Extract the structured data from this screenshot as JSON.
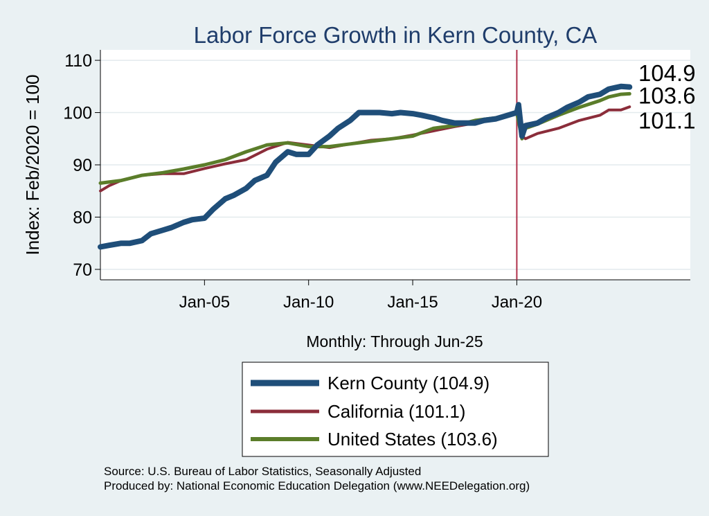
{
  "chart_data": {
    "type": "line",
    "title": "Labor Force Growth in Kern  County, CA",
    "ylabel": "Index: Feb/2020 = 100",
    "xlabel": "Monthly: Through Jun-25",
    "ylim": [
      68,
      112
    ],
    "yticks": [
      "70",
      "80",
      "90",
      "100",
      "110"
    ],
    "xtick_labels": [
      "Jan-05",
      "Jan-10",
      "Jan-15",
      "Jan-20"
    ],
    "x_range": [
      "2000-01",
      "2028-05"
    ],
    "vline": "2020-01",
    "grid": true,
    "legend_position": "bottom",
    "colors": {
      "kern": "#1f4e79",
      "ca": "#8b2d3a",
      "us": "#5b7d2a",
      "vline": "#b0304a",
      "background": "#eaf1f3",
      "plot_bg": "#ffffff"
    },
    "series": [
      {
        "key": "kern",
        "name": "Kern  County (104.9)",
        "end_label": "104.9",
        "points": [
          [
            "2000-01",
            74.3
          ],
          [
            "2000-06",
            74.6
          ],
          [
            "2001-01",
            75.0
          ],
          [
            "2001-06",
            75.0
          ],
          [
            "2002-01",
            75.5
          ],
          [
            "2002-06",
            76.8
          ],
          [
            "2003-01",
            77.5
          ],
          [
            "2003-06",
            78.0
          ],
          [
            "2004-01",
            79.0
          ],
          [
            "2004-06",
            79.5
          ],
          [
            "2005-01",
            79.8
          ],
          [
            "2005-06",
            81.5
          ],
          [
            "2006-01",
            83.5
          ],
          [
            "2006-06",
            84.2
          ],
          [
            "2007-01",
            85.5
          ],
          [
            "2007-06",
            87.0
          ],
          [
            "2008-01",
            88.0
          ],
          [
            "2008-06",
            90.5
          ],
          [
            "2009-01",
            92.5
          ],
          [
            "2009-06",
            92.0
          ],
          [
            "2010-01",
            92.0
          ],
          [
            "2010-06",
            93.8
          ],
          [
            "2011-01",
            95.5
          ],
          [
            "2011-06",
            97.0
          ],
          [
            "2012-01",
            98.5
          ],
          [
            "2012-06",
            100.0
          ],
          [
            "2013-01",
            100.0
          ],
          [
            "2013-06",
            100.0
          ],
          [
            "2014-01",
            99.8
          ],
          [
            "2014-06",
            100.0
          ],
          [
            "2015-01",
            99.8
          ],
          [
            "2015-06",
            99.5
          ],
          [
            "2016-01",
            99.0
          ],
          [
            "2016-06",
            98.5
          ],
          [
            "2017-01",
            98.0
          ],
          [
            "2017-06",
            98.0
          ],
          [
            "2018-01",
            98.0
          ],
          [
            "2018-06",
            98.5
          ],
          [
            "2019-01",
            98.8
          ],
          [
            "2019-06",
            99.3
          ],
          [
            "2020-01",
            100.0
          ],
          [
            "2020-02",
            101.5
          ],
          [
            "2020-04",
            95.5
          ],
          [
            "2020-06",
            97.5
          ],
          [
            "2021-01",
            98.0
          ],
          [
            "2021-06",
            99.0
          ],
          [
            "2022-01",
            100.0
          ],
          [
            "2022-06",
            101.0
          ],
          [
            "2023-01",
            102.0
          ],
          [
            "2023-06",
            103.0
          ],
          [
            "2024-01",
            103.5
          ],
          [
            "2024-06",
            104.5
          ],
          [
            "2025-01",
            105.0
          ],
          [
            "2025-06",
            104.9
          ]
        ]
      },
      {
        "key": "ca",
        "name": "California (101.1)",
        "end_label": "101.1",
        "points": [
          [
            "2000-01",
            85.0
          ],
          [
            "2000-06",
            86.0
          ],
          [
            "2001-01",
            87.0
          ],
          [
            "2002-01",
            88.0
          ],
          [
            "2003-01",
            88.3
          ],
          [
            "2004-01",
            88.3
          ],
          [
            "2005-01",
            89.3
          ],
          [
            "2006-01",
            90.2
          ],
          [
            "2007-01",
            91.0
          ],
          [
            "2008-01",
            93.0
          ],
          [
            "2009-01",
            94.3
          ],
          [
            "2010-01",
            93.8
          ],
          [
            "2011-01",
            93.3
          ],
          [
            "2012-01",
            94.0
          ],
          [
            "2013-01",
            94.7
          ],
          [
            "2014-01",
            95.0
          ],
          [
            "2015-01",
            95.7
          ],
          [
            "2016-01",
            96.5
          ],
          [
            "2017-01",
            97.3
          ],
          [
            "2018-01",
            98.0
          ],
          [
            "2019-01",
            99.0
          ],
          [
            "2020-01",
            100.0
          ],
          [
            "2020-04",
            95.5
          ],
          [
            "2020-06",
            95.0
          ],
          [
            "2021-01",
            96.0
          ],
          [
            "2022-01",
            97.0
          ],
          [
            "2023-01",
            98.5
          ],
          [
            "2024-01",
            99.5
          ],
          [
            "2024-06",
            100.5
          ],
          [
            "2025-01",
            100.5
          ],
          [
            "2025-06",
            101.1
          ]
        ]
      },
      {
        "key": "us",
        "name": "United States (103.6)",
        "end_label": "103.6",
        "points": [
          [
            "2000-01",
            86.5
          ],
          [
            "2001-01",
            87.0
          ],
          [
            "2002-01",
            88.0
          ],
          [
            "2003-01",
            88.5
          ],
          [
            "2004-01",
            89.2
          ],
          [
            "2005-01",
            90.0
          ],
          [
            "2006-01",
            91.0
          ],
          [
            "2007-01",
            92.5
          ],
          [
            "2008-01",
            93.8
          ],
          [
            "2009-01",
            94.2
          ],
          [
            "2010-01",
            93.5
          ],
          [
            "2011-01",
            93.5
          ],
          [
            "2012-01",
            94.0
          ],
          [
            "2013-01",
            94.5
          ],
          [
            "2014-01",
            95.0
          ],
          [
            "2015-01",
            95.5
          ],
          [
            "2016-01",
            97.0
          ],
          [
            "2017-01",
            97.5
          ],
          [
            "2018-01",
            98.5
          ],
          [
            "2019-01",
            99.0
          ],
          [
            "2020-01",
            100.0
          ],
          [
            "2020-04",
            95.0
          ],
          [
            "2020-06",
            97.0
          ],
          [
            "2021-01",
            97.8
          ],
          [
            "2022-01",
            99.5
          ],
          [
            "2023-01",
            101.0
          ],
          [
            "2024-01",
            102.3
          ],
          [
            "2024-06",
            103.0
          ],
          [
            "2025-01",
            103.5
          ],
          [
            "2025-06",
            103.6
          ]
        ]
      }
    ]
  },
  "source_line": "Source: U.S. Bureau of Labor Statistics, Seasonally Adjusted",
  "produced_line": "Produced by: National Economic Education Delegation (www.NEEDelegation.org)"
}
